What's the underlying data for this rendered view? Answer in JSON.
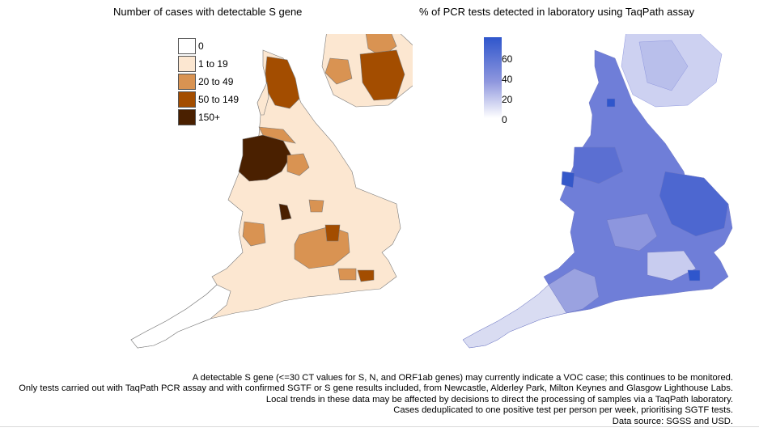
{
  "titles": {
    "left": "Number of cases with detectable S gene",
    "right": "% of PCR tests detected in laboratory using TaqPath assay"
  },
  "legend_left": [
    {
      "label": "0",
      "color": "#ffffff"
    },
    {
      "label": "1 to 19",
      "color": "#fce7d1"
    },
    {
      "label": "20 to 49",
      "color": "#d99352"
    },
    {
      "label": "50 to 149",
      "color": "#a34d00"
    },
    {
      "label": "150+",
      "color": "#4a2000"
    }
  ],
  "legend_right": {
    "ticks": [
      "60",
      "40",
      "20",
      "0"
    ],
    "colors": {
      "low": "#ffffff",
      "mid": "#8f97de",
      "high": "#2f56cc"
    }
  },
  "footnotes": [
    "A detectable S gene (<=30 CT values for S, N, and ORF1ab genes) may currently indicate a VOC case; this continues to be monitored.",
    "Only tests carried out with TaqPath PCR assay and with confirmed SGTF or S gene results included, from Newcastle, Alderley Park, Milton Keynes and Glasgow Lighthouse Labs.",
    "Local trends in these data may be affected by decisions to direct the processing of samples via a TaqPath laboratory.",
    "Cases deduplicated to one positive test per person per week, prioritising SGTF tests.",
    "Data source: SGSS and USD."
  ]
}
